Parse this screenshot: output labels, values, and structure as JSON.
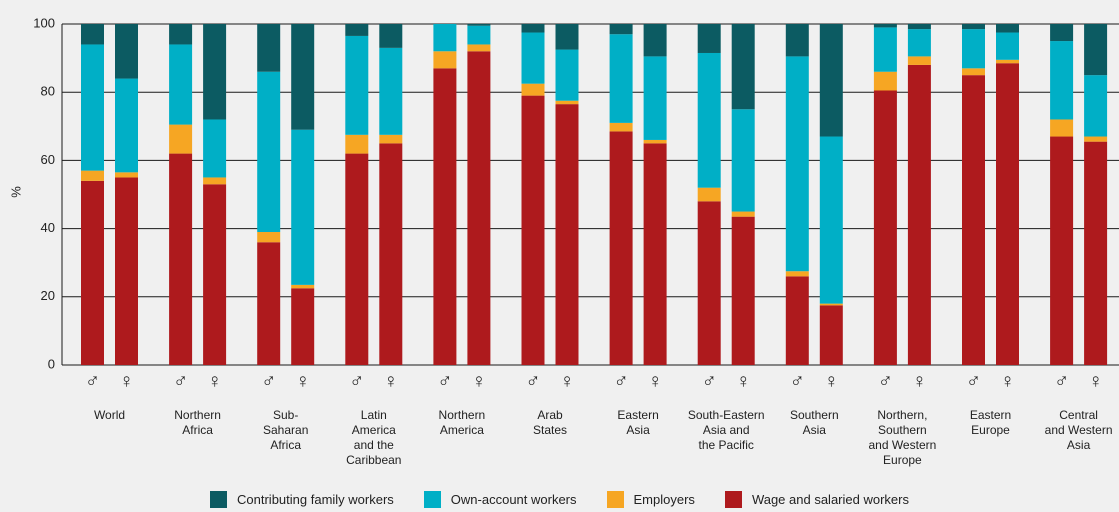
{
  "chart_data": {
    "type": "stacked_bar",
    "y_label": "%",
    "groups": [
      "World",
      "Northern\nAfrica",
      "Sub-\nSaharan\nAfrica",
      "Latin\nAmerica\nand the\nCaribbean",
      "Northern\nAmerica",
      "Arab\nStates",
      "Eastern\nAsia",
      "South-Eastern\nAsia and\nthe Pacific",
      "Southern\nAsia",
      "Northern,\nSouthern\nand Western\nEurope",
      "Eastern\nEurope",
      "Central\nand Western\nAsia"
    ],
    "categories": [
      "♂",
      "♀",
      "♂",
      "♀",
      "♂",
      "♀",
      "♂",
      "♀",
      "♂",
      "♀",
      "♂",
      "♀",
      "♂",
      "♀",
      "♂",
      "♀",
      "♂",
      "♀",
      "♂",
      "♀",
      "♂",
      "♀",
      "♂",
      "♀"
    ],
    "series": [
      {
        "name": "Contributing family workers",
        "color": "#0c5b62",
        "values": [
          6,
          16,
          6,
          28,
          14,
          31,
          3.5,
          7,
          0,
          0.5,
          2.5,
          7.5,
          3,
          9.5,
          8.5,
          25,
          9.5,
          33,
          1,
          1.5,
          1.5,
          2.5,
          5,
          15
        ]
      },
      {
        "name": "Own-account workers",
        "color": "#00afc6",
        "values": [
          37,
          27.5,
          23.5,
          17,
          47,
          45.5,
          29,
          25.5,
          8,
          5.5,
          15,
          15,
          26,
          24.5,
          39.5,
          30,
          63,
          49,
          13,
          8,
          11.5,
          8,
          23,
          18
        ]
      },
      {
        "name": "Employers",
        "color": "#f6a623",
        "values": [
          3,
          1.5,
          8.5,
          2,
          3,
          1,
          5.5,
          2.5,
          5,
          2,
          3.5,
          1,
          2.5,
          1,
          4,
          1.5,
          1.5,
          0.5,
          5.5,
          2.5,
          2,
          1,
          5,
          1.5
        ]
      },
      {
        "name": "Wage and salaried workers",
        "color": "#ae1a1d",
        "values": [
          54,
          55,
          62,
          53,
          36,
          22.5,
          62,
          65,
          87,
          92,
          79,
          76.5,
          68.5,
          65,
          48,
          43.5,
          26,
          17.5,
          80.5,
          88,
          85,
          88.5,
          67,
          65.5
        ]
      }
    ],
    "ylim": [
      0,
      100
    ],
    "yticks": [
      0,
      20,
      40,
      60,
      80,
      100
    ],
    "grid": true
  }
}
